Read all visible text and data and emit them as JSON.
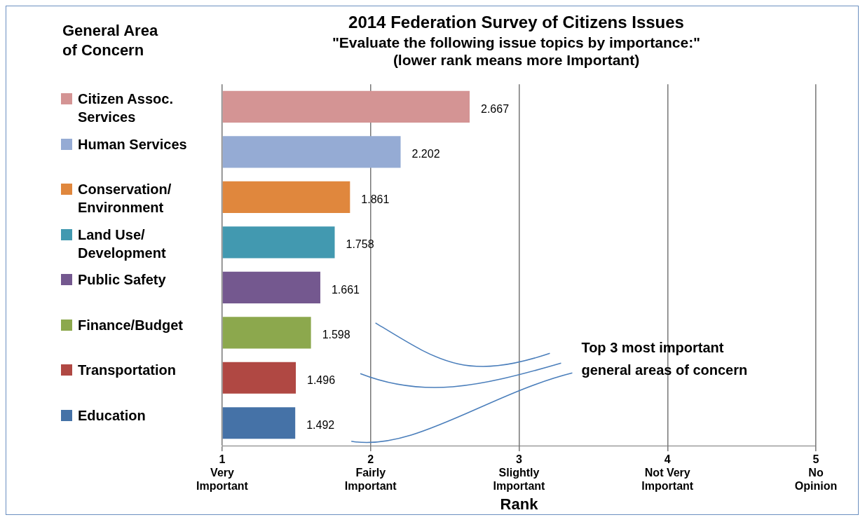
{
  "chart_data": {
    "type": "bar",
    "orientation": "horizontal",
    "title": "2014 Federation Survey of Citizens Issues",
    "subtitle": "\"Evaluate the following issue topics by importance:\"\n(lower rank means more Important)",
    "xlabel": "Rank",
    "legend_title": "General Area\nof Concern",
    "legend": "left",
    "categories": [
      null,
      null,
      null,
      null,
      null,
      null,
      null,
      null
    ],
    "series": [
      {
        "name": "Citizen Assoc. Services",
        "color": "#d49494",
        "values": [
          2.667,
          null,
          null,
          null,
          null,
          null,
          null,
          null
        ]
      },
      {
        "name": "Human Services",
        "color": "#95abd4",
        "values": [
          null,
          2.202,
          null,
          null,
          null,
          null,
          null,
          null
        ]
      },
      {
        "name": "Conservation/ Environment",
        "color": "#e0873d",
        "values": [
          null,
          null,
          1.861,
          null,
          null,
          null,
          null,
          null
        ]
      },
      {
        "name": "Land Use/ Development",
        "color": "#4299b0",
        "values": [
          null,
          null,
          null,
          1.758,
          null,
          null,
          null,
          null
        ]
      },
      {
        "name": "Public Safety",
        "color": "#74588f",
        "values": [
          null,
          null,
          null,
          null,
          1.661,
          null,
          null,
          null
        ]
      },
      {
        "name": "Finance/Budget",
        "color": "#8ca84d",
        "values": [
          null,
          null,
          null,
          null,
          null,
          1.598,
          null,
          null
        ]
      },
      {
        "name": "Transportation",
        "color": "#b04843",
        "values": [
          null,
          null,
          null,
          null,
          null,
          null,
          1.496,
          null
        ]
      },
      {
        "name": "Education",
        "color": "#4572a7",
        "values": [
          null,
          null,
          null,
          null,
          null,
          null,
          null,
          1.492
        ]
      }
    ],
    "xlim": [
      1,
      5
    ],
    "xticks": [
      {
        "value": 1,
        "label": "1\nVery\nImportant"
      },
      {
        "value": 2,
        "label": "2\nFairly\nImportant"
      },
      {
        "value": 3,
        "label": "3\nSlightly\nImportant"
      },
      {
        "value": 4,
        "label": "4\nNot Very\nImportant"
      },
      {
        "value": 5,
        "label": "5\nNo\nOpinion"
      }
    ],
    "tick_labels": "x",
    "grid": "x",
    "data_labels": true,
    "annotations": [
      "Top 3  most important\ngeneral  areas of concern"
    ]
  }
}
